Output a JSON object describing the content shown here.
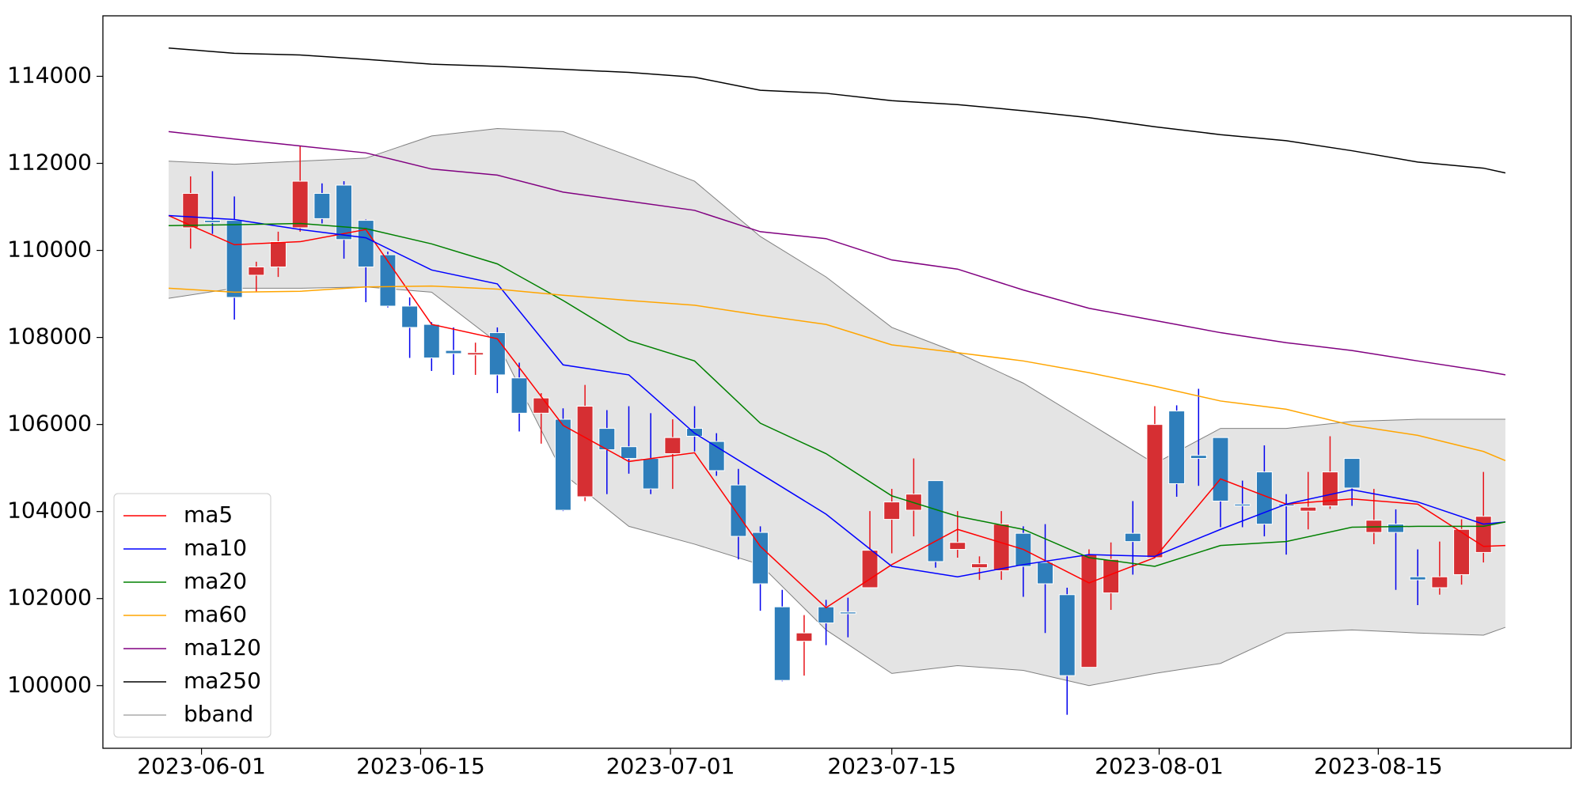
{
  "chart_data": {
    "type": "candlestick",
    "x": [
      1,
      2,
      3,
      4,
      5,
      6,
      7,
      8,
      9,
      10,
      11,
      12,
      13,
      14,
      15,
      16,
      17,
      18,
      19,
      20,
      21,
      22,
      23,
      24,
      25,
      26,
      27,
      28,
      29,
      30,
      31,
      32,
      33,
      34,
      35,
      36,
      37,
      38,
      39,
      40,
      41,
      42,
      43,
      44,
      45,
      46,
      47,
      48,
      49,
      50,
      51,
      52,
      53,
      54,
      55,
      56,
      57,
      58,
      59,
      60
    ],
    "open": [
      110520,
      110690,
      110690,
      109430,
      109620,
      110520,
      111310,
      111500,
      110690,
      109900,
      108720,
      108300,
      107700,
      107600,
      108110,
      107070,
      106260,
      106120,
      104340,
      105910,
      105490,
      105220,
      105330,
      105910,
      105610,
      104610,
      103520,
      101810,
      101020,
      101810,
      101690,
      102250,
      103820,
      104030,
      104710,
      103130,
      102710,
      102640,
      103500,
      102830,
      102090,
      100420,
      102130,
      103500,
      102940,
      106310,
      105290,
      105700,
      104170,
      104910,
      104170,
      104010,
      104130,
      105220,
      103520,
      103710,
      102500,
      102250,
      102550,
      103060
    ],
    "high": [
      111700,
      111820,
      111240,
      109740,
      110430,
      112400,
      111540,
      111590,
      110710,
      109970,
      108920,
      108350,
      108230,
      107880,
      108230,
      107420,
      106720,
      106370,
      106910,
      106330,
      106420,
      106260,
      106120,
      106420,
      105800,
      104980,
      103660,
      102200,
      101620,
      101970,
      102020,
      104010,
      104520,
      105220,
      104710,
      104010,
      102970,
      104010,
      103660,
      103710,
      102250,
      103130,
      103290,
      104240,
      106420,
      106440,
      106820,
      105700,
      104710,
      105520,
      104400,
      104910,
      105730,
      105220,
      104520,
      104050,
      103130,
      103310,
      103820,
      104910
    ],
    "low": [
      110040,
      110380,
      108410,
      109040,
      109390,
      110430,
      110620,
      109810,
      108810,
      108690,
      107530,
      107230,
      107140,
      107140,
      106720,
      105840,
      105560,
      104010,
      104240,
      104400,
      104870,
      104400,
      104520,
      105380,
      104820,
      102900,
      101720,
      100100,
      100230,
      100930,
      101110,
      102250,
      103040,
      103430,
      102710,
      102940,
      102430,
      102430,
      102040,
      101210,
      99330,
      100420,
      101740,
      102550,
      102940,
      104340,
      104590,
      103640,
      103640,
      103430,
      103010,
      103590,
      104060,
      104130,
      103250,
      102200,
      101850,
      102090,
      102320,
      102830
    ],
    "close": [
      111310,
      110640,
      108920,
      109620,
      110200,
      111590,
      110730,
      110250,
      109620,
      108720,
      108230,
      107530,
      107630,
      107650,
      107140,
      106260,
      106610,
      104030,
      106420,
      105420,
      105220,
      104520,
      105700,
      105730,
      104940,
      103430,
      102340,
      100120,
      101210,
      101440,
      101650,
      103110,
      104220,
      104400,
      102850,
      103290,
      102800,
      103710,
      102740,
      102340,
      100230,
      103010,
      102900,
      103310,
      106000,
      104640,
      105220,
      104240,
      104130,
      103710,
      104130,
      104100,
      104910,
      104540,
      103800,
      103520,
      102430,
      102500,
      103590,
      103890
    ],
    "up_color": "#d62f33",
    "down_color": "#2e7ebb",
    "up_wick_color": "#e8151b",
    "down_wick_color": "#0000ee",
    "lines": [
      {
        "name": "ma5",
        "color": "#ff0000",
        "x": [
          0,
          3,
          6,
          9,
          12,
          15,
          18,
          21,
          24,
          27,
          30,
          33,
          36,
          39,
          42,
          45,
          48,
          51,
          54,
          57,
          60,
          61
        ],
        "values": [
          110800,
          110130,
          110200,
          110480,
          108300,
          107970,
          105980,
          105150,
          105350,
          103200,
          101790,
          102780,
          103590,
          103130,
          102360,
          102940,
          104750,
          104170,
          104290,
          104170,
          103200,
          103220
        ]
      },
      {
        "name": "ma10",
        "color": "#0000ff",
        "x": [
          0,
          3,
          6,
          9,
          12,
          15,
          18,
          21,
          24,
          27,
          30,
          33,
          36,
          39,
          42,
          45,
          48,
          51,
          54,
          57,
          60,
          61
        ],
        "values": [
          110800,
          110710,
          110480,
          110290,
          109550,
          109230,
          107370,
          107140,
          105800,
          104870,
          103940,
          102740,
          102500,
          102780,
          103010,
          102970,
          103590,
          104170,
          104500,
          104220,
          103710,
          103760
        ]
      },
      {
        "name": "ma20",
        "color": "#008000",
        "x": [
          0,
          3,
          6,
          9,
          12,
          15,
          18,
          21,
          24,
          27,
          30,
          33,
          36,
          39,
          42,
          45,
          48,
          51,
          54,
          57,
          60,
          61
        ],
        "values": [
          110570,
          110590,
          110620,
          110500,
          110150,
          109690,
          108850,
          107930,
          107460,
          106030,
          105330,
          104360,
          103890,
          103590,
          102940,
          102740,
          103220,
          103310,
          103640,
          103660,
          103660,
          103760
        ]
      },
      {
        "name": "ma60",
        "color": "#ffa500",
        "x": [
          0,
          3,
          6,
          9,
          12,
          15,
          18,
          21,
          24,
          27,
          30,
          33,
          36,
          39,
          42,
          45,
          48,
          51,
          54,
          57,
          60,
          61
        ],
        "values": [
          109130,
          109040,
          109060,
          109160,
          109180,
          109110,
          108970,
          108850,
          108740,
          108510,
          108300,
          107830,
          107650,
          107460,
          107190,
          106880,
          106540,
          106350,
          105980,
          105750,
          105380,
          105170
        ]
      },
      {
        "name": "ma120",
        "color": "#800080",
        "x": [
          0,
          3,
          6,
          9,
          12,
          15,
          18,
          21,
          24,
          27,
          30,
          33,
          36,
          39,
          42,
          45,
          48,
          51,
          54,
          57,
          60,
          61
        ],
        "values": [
          112730,
          112560,
          112400,
          112240,
          111870,
          111730,
          111340,
          111130,
          110920,
          110430,
          110270,
          109780,
          109570,
          109090,
          108670,
          108390,
          108110,
          107880,
          107700,
          107460,
          107230,
          107140
        ]
      },
      {
        "name": "ma250",
        "color": "#000000",
        "x": [
          0,
          3,
          6,
          9,
          12,
          15,
          18,
          21,
          24,
          27,
          30,
          33,
          36,
          39,
          42,
          45,
          48,
          51,
          54,
          57,
          60,
          61
        ],
        "values": [
          114650,
          114530,
          114490,
          114390,
          114280,
          114230,
          114160,
          114090,
          113980,
          113680,
          113610,
          113440,
          113350,
          113210,
          113050,
          112840,
          112660,
          112520,
          112290,
          112030,
          111890,
          111780
        ]
      }
    ],
    "band": {
      "name": "bband",
      "color": "#808080",
      "fill": "#e4e4e4",
      "x": [
        0,
        3,
        6,
        9,
        12,
        15,
        18,
        21,
        24,
        27,
        30,
        33,
        36,
        39,
        42,
        45,
        48,
        51,
        54,
        57,
        60,
        61
      ],
      "upper": [
        112050,
        111980,
        112050,
        112120,
        112630,
        112800,
        112730,
        112170,
        111590,
        110320,
        109390,
        108230,
        107650,
        106950,
        106030,
        105100,
        105910,
        105910,
        106070,
        106120,
        106120,
        106120
      ],
      "lower": [
        108900,
        109130,
        109130,
        109160,
        109040,
        107880,
        104870,
        103660,
        103250,
        102780,
        101280,
        100280,
        100460,
        100350,
        100000,
        100280,
        100510,
        101210,
        101280,
        101210,
        101160,
        101340
      ]
    },
    "xlim": [
      -3,
      64
    ],
    "xticks": [
      {
        "value": 1.5,
        "label": "2023-06-01"
      },
      {
        "value": 11.5,
        "label": "2023-06-15"
      },
      {
        "value": 22.9,
        "label": "2023-07-01"
      },
      {
        "value": 33,
        "label": "2023-07-15"
      },
      {
        "value": 45.2,
        "label": "2023-08-01"
      },
      {
        "value": 55.2,
        "label": "2023-08-15"
      }
    ],
    "ylim": [
      98560,
      115390
    ],
    "yticks": [
      100000,
      102000,
      104000,
      106000,
      108000,
      110000,
      112000,
      114000
    ],
    "legend": "lower left"
  }
}
